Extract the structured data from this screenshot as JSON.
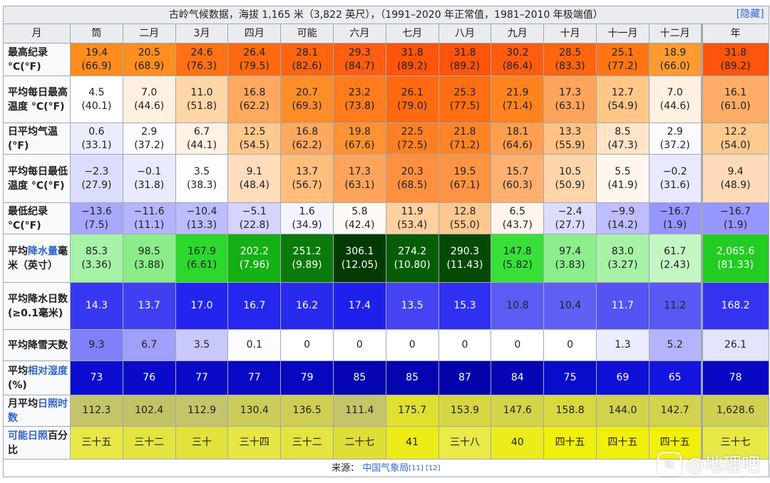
{
  "title": "古岭气候数据，海拔 1,165 米（3,822 英尺），（1991–2020 年正常值，1981–2010 年极端值）",
  "hide_label": "[隐藏]",
  "header": [
    "月",
    "筒",
    "二月",
    "3月",
    "四月",
    "可能",
    "六月",
    "七月",
    "八月",
    "九月",
    "十月",
    "十一月",
    "十二月",
    "年"
  ],
  "rows": [
    {
      "label_parts": [
        {
          "t": "最高纪录 °C",
          "link": false
        },
        {
          "t": "(°F)",
          "link": false
        }
      ],
      "cells": [
        [
          "19.4",
          "(66.9)",
          "#ff8c1f",
          "#202122"
        ],
        [
          "20.5",
          "(68.9)",
          "#ff8d20",
          "#202122"
        ],
        [
          "24.6",
          "(76.3)",
          "#ff7114",
          "#202122"
        ],
        [
          "26.4",
          "(79.5)",
          "#ff6a10",
          "#202122"
        ],
        [
          "28.1",
          "(82.6)",
          "#ff6410",
          "#202122"
        ],
        [
          "29.3",
          "(84.7)",
          "#ff5e10",
          "#202122"
        ],
        [
          "31.8",
          "(89.2)",
          "#ff540c",
          "#202122"
        ],
        [
          "31.8",
          "(89.2)",
          "#ff540c",
          "#202122"
        ],
        [
          "30.2",
          "(86.4)",
          "#ff5c10",
          "#202122"
        ],
        [
          "28.5",
          "(83.3)",
          "#ff6410",
          "#202122"
        ],
        [
          "25.1",
          "(77.2)",
          "#ff7514",
          "#202122"
        ],
        [
          "18.9",
          "(66.0)",
          "#ff9a30",
          "#202122"
        ],
        [
          "31.8",
          "(89.2)",
          "#ff540c",
          "#202122"
        ]
      ]
    },
    {
      "label_parts": [
        {
          "t": "平均每日最高温度 °C",
          "link": false
        },
        {
          "t": "(°F)",
          "link": false
        }
      ],
      "cells": [
        [
          "4.5",
          "(40.1)",
          "#ffffff",
          "#202122"
        ],
        [
          "7.0",
          "(44.6)",
          "#fff0e0",
          "#202122"
        ],
        [
          "11.0",
          "(51.8)",
          "#ffd6a8",
          "#202122"
        ],
        [
          "16.8",
          "(62.2)",
          "#ffa860",
          "#202122"
        ],
        [
          "20.7",
          "(69.3)",
          "#ff8e28",
          "#202122"
        ],
        [
          "23.2",
          "(73.8)",
          "#ff7c1c",
          "#202122"
        ],
        [
          "26.1",
          "(79.0)",
          "#ff6a10",
          "#202122"
        ],
        [
          "25.3",
          "(77.5)",
          "#ff6e12",
          "#202122"
        ],
        [
          "21.9",
          "(71.4)",
          "#ff8420",
          "#202122"
        ],
        [
          "17.3",
          "(63.1)",
          "#ffa45c",
          "#202122"
        ],
        [
          "12.7",
          "(54.9)",
          "#ffc688",
          "#202122"
        ],
        [
          "7.0",
          "(44.6)",
          "#fff0e0",
          "#202122"
        ],
        [
          "16.1",
          "(61.0)",
          "#ffac68",
          "#202122"
        ]
      ]
    },
    {
      "label_parts": [
        {
          "t": "日平均气温",
          "link": false
        },
        {
          "t": "(°F)",
          "link": false
        }
      ],
      "cells": [
        [
          "0.6",
          "(33.1)",
          "#ececff",
          "#202122"
        ],
        [
          "2.9",
          "(37.2)",
          "#fafaff",
          "#202122"
        ],
        [
          "6.7",
          "(44.1)",
          "#fff1e4",
          "#202122"
        ],
        [
          "12.5",
          "(54.5)",
          "#ffc88c",
          "#202122"
        ],
        [
          "16.8",
          "(62.2)",
          "#ffa860",
          "#202122"
        ],
        [
          "19.8",
          "(67.6)",
          "#ff9232",
          "#202122"
        ],
        [
          "22.5",
          "(72.5)",
          "#ff8024",
          "#202122"
        ],
        [
          "21.8",
          "(71.2)",
          "#ff8428",
          "#202122"
        ],
        [
          "18.1",
          "(64.6)",
          "#ff9e50",
          "#202122"
        ],
        [
          "13.3",
          "(55.9)",
          "#ffc284",
          "#202122"
        ],
        [
          "8.5",
          "(47.3)",
          "#ffe4c8",
          "#202122"
        ],
        [
          "2.9",
          "(37.2)",
          "#fafaff",
          "#202122"
        ],
        [
          "12.2",
          "(54.0)",
          "#ffca90",
          "#202122"
        ]
      ]
    },
    {
      "label_parts": [
        {
          "t": "平均每日最低温度 °C",
          "link": false
        },
        {
          "t": "(°F)",
          "link": false
        }
      ],
      "cells": [
        [
          "−2.3",
          "(27.9)",
          "#dcdcff",
          "#202122"
        ],
        [
          "−0.1",
          "(31.8)",
          "#eaeaff",
          "#202122"
        ],
        [
          "3.5",
          "(38.3)",
          "#fdfdff",
          "#202122"
        ],
        [
          "9.1",
          "(48.4)",
          "#ffdcbc",
          "#202122"
        ],
        [
          "13.7",
          "(56.7)",
          "#ffbe7c",
          "#202122"
        ],
        [
          "17.3",
          "(63.1)",
          "#ffa45c",
          "#202122"
        ],
        [
          "20.3",
          "(68.5)",
          "#ff9040",
          "#202122"
        ],
        [
          "19.5",
          "(67.1)",
          "#ff9444",
          "#202122"
        ],
        [
          "15.7",
          "(60.3)",
          "#ffb070",
          "#202122"
        ],
        [
          "10.5",
          "(50.9)",
          "#ffd6ac",
          "#202122"
        ],
        [
          "5.5",
          "(41.9)",
          "#fff7ee",
          "#202122"
        ],
        [
          "−0.2",
          "(31.6)",
          "#e8e8ff",
          "#202122"
        ],
        [
          "9.4",
          "(48.9)",
          "#ffdab8",
          "#202122"
        ]
      ]
    },
    {
      "label_parts": [
        {
          "t": "最低纪录 °C",
          "link": false
        },
        {
          "t": "(°F)",
          "link": false
        }
      ],
      "cells": [
        [
          "−13.6",
          "(7.5)",
          "#a8a8ff",
          "#202122"
        ],
        [
          "−11.6",
          "(11.1)",
          "#b4b4ff",
          "#202122"
        ],
        [
          "−10.4",
          "(13.3)",
          "#bcbcff",
          "#202122"
        ],
        [
          "−5.1",
          "(22.8)",
          "#d4d4ff",
          "#202122"
        ],
        [
          "1.6",
          "(34.9)",
          "#f4f4ff",
          "#202122"
        ],
        [
          "5.8",
          "(42.4)",
          "#fff9f2",
          "#202122"
        ],
        [
          "11.9",
          "(53.4)",
          "#ffd0a0",
          "#202122"
        ],
        [
          "12.8",
          "(55.0)",
          "#ffc890",
          "#202122"
        ],
        [
          "6.5",
          "(43.7)",
          "#fff5ea",
          "#202122"
        ],
        [
          "−2.4",
          "(27.7)",
          "#dcdcff",
          "#202122"
        ],
        [
          "−9.9",
          "(14.2)",
          "#bebeff",
          "#202122"
        ],
        [
          "−16.7",
          "(1.9)",
          "#9696ff",
          "#202122"
        ],
        [
          "−16.7",
          "(1.9)",
          "#9696ff",
          "#202122"
        ]
      ]
    },
    {
      "label_parts": [
        {
          "t": "平均",
          "link": false
        },
        {
          "t": "降水量",
          "link": true
        },
        {
          "t": "毫米（英寸）",
          "link": false
        }
      ],
      "cells": [
        [
          "85.3",
          "(3.36)",
          "#a6f2a6",
          "#202122"
        ],
        [
          "98.5",
          "(3.88)",
          "#8aed8a",
          "#202122"
        ],
        [
          "167.9",
          "(6.61)",
          "#2cd82c",
          "#202122"
        ],
        [
          "202.2",
          "(7.96)",
          "#14b014",
          "#ffffff"
        ],
        [
          "251.2",
          "(9.89)",
          "#0a7a0a",
          "#ffffff"
        ],
        [
          "306.1",
          "(12.05)",
          "#033a03",
          "#ffffff"
        ],
        [
          "274.2",
          "(10.80)",
          "#065d06",
          "#ffffff"
        ],
        [
          "290.3",
          "(11.43)",
          "#044a04",
          "#ffffff"
        ],
        [
          "147.8",
          "(5.82)",
          "#38e038",
          "#202122"
        ],
        [
          "97.4",
          "(3.83)",
          "#8ced8c",
          "#202122"
        ],
        [
          "83.0",
          "(3.27)",
          "#a8f2a8",
          "#202122"
        ],
        [
          "61.7",
          "(2.43)",
          "#c4f6c4",
          "#202122"
        ],
        [
          "2,065.6",
          "(81.33)",
          "#22cc22",
          "#ffffff"
        ]
      ]
    },
    {
      "label_parts": [
        {
          "t": "平均降水日数",
          "link": false
        },
        {
          "t": "(≥0.1毫米)",
          "link": false
        }
      ],
      "cells": [
        [
          "14.3",
          "",
          "#3838f2",
          "#ffffff"
        ],
        [
          "13.7",
          "",
          "#4040f2",
          "#ffffff"
        ],
        [
          "17.0",
          "",
          "#2424ee",
          "#ffffff"
        ],
        [
          "16.7",
          "",
          "#2626ee",
          "#ffffff"
        ],
        [
          "16.2",
          "",
          "#2a2aee",
          "#ffffff"
        ],
        [
          "17.4",
          "",
          "#2020ec",
          "#ffffff"
        ],
        [
          "13.5",
          "",
          "#4444f2",
          "#ffffff"
        ],
        [
          "15.3",
          "",
          "#3030f0",
          "#ffffff"
        ],
        [
          "10.8",
          "",
          "#5c5cf4",
          "#202122"
        ],
        [
          "10.4",
          "",
          "#6060f4",
          "#202122"
        ],
        [
          "11.7",
          "",
          "#5454f4",
          "#ffffff"
        ],
        [
          "11.2",
          "",
          "#5858f4",
          "#202122"
        ],
        [
          "168.2",
          "",
          "#3434f0",
          "#ffffff"
        ]
      ]
    },
    {
      "label_parts": [
        {
          "t": "平均降雪天数",
          "link": false
        }
      ],
      "cells": [
        [
          "9.3",
          "",
          "#8080f8",
          "#202122"
        ],
        [
          "6.7",
          "",
          "#a0a0fa",
          "#202122"
        ],
        [
          "3.5",
          "",
          "#c8c8fc",
          "#202122"
        ],
        [
          "0.1",
          "",
          "#fcfcff",
          "#202122"
        ],
        [
          "0",
          "",
          "#ffffff",
          "#202122"
        ],
        [
          "0",
          "",
          "#ffffff",
          "#202122"
        ],
        [
          "0",
          "",
          "#ffffff",
          "#202122"
        ],
        [
          "0",
          "",
          "#ffffff",
          "#202122"
        ],
        [
          "0",
          "",
          "#ffffff",
          "#202122"
        ],
        [
          "0",
          "",
          "#ffffff",
          "#202122"
        ],
        [
          "1.3",
          "",
          "#ececff",
          "#202122"
        ],
        [
          "5.2",
          "",
          "#b4b4fc",
          "#202122"
        ],
        [
          "26.1",
          "",
          "#e4e4ff",
          "#202122"
        ]
      ]
    },
    {
      "label_parts": [
        {
          "t": "平均",
          "link": false
        },
        {
          "t": "相对湿度",
          "link": true
        },
        {
          "t": "(%)",
          "link": false
        }
      ],
      "cells": [
        [
          "73",
          "",
          "#0c0cd0",
          "#ffffff"
        ],
        [
          "76",
          "",
          "#0a0ac8",
          "#ffffff"
        ],
        [
          "77",
          "",
          "#0909c6",
          "#ffffff"
        ],
        [
          "77",
          "",
          "#0909c6",
          "#ffffff"
        ],
        [
          "79",
          "",
          "#0808c0",
          "#ffffff"
        ],
        [
          "85",
          "",
          "#0404b0",
          "#ffffff"
        ],
        [
          "85",
          "",
          "#0404b0",
          "#ffffff"
        ],
        [
          "87",
          "",
          "#0303aa",
          "#ffffff"
        ],
        [
          "84",
          "",
          "#0505b4",
          "#ffffff"
        ],
        [
          "75",
          "",
          "#0b0bcc",
          "#ffffff"
        ],
        [
          "69",
          "",
          "#1010d8",
          "#ffffff"
        ],
        [
          "65",
          "",
          "#1414e0",
          "#ffffff"
        ],
        [
          "78",
          "",
          "#0808c4",
          "#ffffff"
        ]
      ]
    },
    {
      "label_parts": [
        {
          "t": "月平均",
          "link": false
        },
        {
          "t": "日照时数",
          "link": true
        }
      ],
      "cells": [
        [
          "112.3",
          "",
          "#c4c46a",
          "#202122"
        ],
        [
          "102.4",
          "",
          "#c2c266",
          "#202122"
        ],
        [
          "112.9",
          "",
          "#c4c46a",
          "#202122"
        ],
        [
          "130.4",
          "",
          "#cccc5a",
          "#202122"
        ],
        [
          "136.5",
          "",
          "#cece54",
          "#202122"
        ],
        [
          "111.4",
          "",
          "#c4c46a",
          "#202122"
        ],
        [
          "175.7",
          "",
          "#e0e030",
          "#202122"
        ],
        [
          "153.9",
          "",
          "#d6d644",
          "#202122"
        ],
        [
          "147.6",
          "",
          "#d4d448",
          "#202122"
        ],
        [
          "158.8",
          "",
          "#d8d840",
          "#202122"
        ],
        [
          "144.0",
          "",
          "#d2d24c",
          "#202122"
        ],
        [
          "142.7",
          "",
          "#d2d24c",
          "#202122"
        ],
        [
          "1,628.6",
          "",
          "#d0d052",
          "#202122"
        ]
      ]
    },
    {
      "label_parts": [
        {
          "t": "可能日照",
          "link": true
        },
        {
          "t": "百分比",
          "link": false
        }
      ],
      "cells": [
        [
          "三十五",
          "",
          "#e8e846",
          "#202122"
        ],
        [
          "三十二",
          "",
          "#e4e440",
          "#202122"
        ],
        [
          "三十",
          "",
          "#e2e23c",
          "#202122"
        ],
        [
          "三十四",
          "",
          "#e6e644",
          "#202122"
        ],
        [
          "三十二",
          "",
          "#e4e440",
          "#202122"
        ],
        [
          "二十七",
          "",
          "#dede36",
          "#202122"
        ],
        [
          "41",
          "",
          "#ecec18",
          "#202122"
        ],
        [
          "三十八",
          "",
          "#eaea48",
          "#202122"
        ],
        [
          "40",
          "",
          "#ecec1c",
          "#202122"
        ],
        [
          "四十五",
          "",
          "#f0f00c",
          "#202122"
        ],
        [
          "四十五",
          "",
          "#f0f00c",
          "#202122"
        ],
        [
          "四十五",
          "",
          "#f0f00c",
          "#202122"
        ],
        [
          "三十七",
          "",
          "#e8e846",
          "#202122"
        ]
      ]
    }
  ],
  "source": {
    "prefix": "来源：",
    "link": "中国气象局",
    "refs": "[11] [12]"
  },
  "watermark": {
    "icon": "贴",
    "text": "@地理吧"
  }
}
